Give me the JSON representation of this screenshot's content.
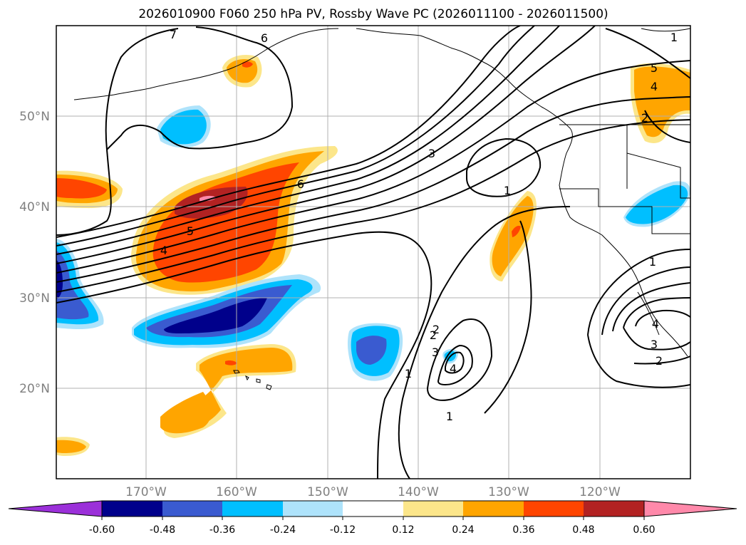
{
  "title": "2026010900 F060 250 hPa PV, Rossby Wave PC (2026011100 - 2026011500)",
  "lat_labels": [
    "50°N",
    "40°N",
    "30°N",
    "20°N"
  ],
  "lon_labels": [
    "170°W",
    "160°W",
    "150°W",
    "140°W",
    "130°W",
    "120°W"
  ],
  "colorbar": {
    "colors": [
      "#9b30d9",
      "#00008b",
      "#3a5bd0",
      "#00bfff",
      "#aee3fb",
      "#ffffff",
      "#fce68a",
      "#ffa500",
      "#ff4500",
      "#b22222",
      "#ff89aa"
    ],
    "tick_labels": [
      "-0.60",
      "-0.48",
      "-0.36",
      "-0.24",
      "-0.12",
      "0.12",
      "0.24",
      "0.36",
      "0.48",
      "0.60"
    ]
  },
  "contour_labels": [
    "7",
    "6",
    "6",
    "5",
    "4",
    "3",
    "2",
    "1",
    "1",
    "2",
    "3",
    "4",
    "1",
    "1",
    "5",
    "4",
    "2",
    "1",
    "2",
    "3",
    "4"
  ]
}
